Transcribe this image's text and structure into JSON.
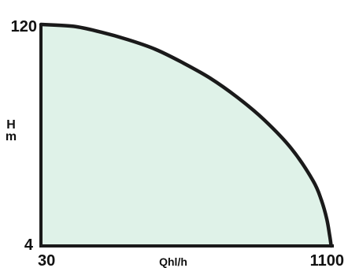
{
  "chart_data": {
    "type": "area",
    "title": "",
    "xlabel": "Qhl/h",
    "ylabel": "H m",
    "ylabel_parts": [
      "H",
      "m"
    ],
    "x_tick_labels": [
      "30",
      "1100"
    ],
    "y_tick_labels": [
      "120",
      "4"
    ],
    "xlim": [
      30,
      1100
    ],
    "ylim": [
      4,
      120
    ],
    "grid": false,
    "legend": "none",
    "colors": {
      "fill": "#dff2e8",
      "curve": "#1a1a1a",
      "frame": "#1a1a1a",
      "text": "#111111"
    },
    "series": [
      {
        "x": [
          30,
          150,
          250,
          350,
          450,
          550,
          650,
          750,
          850,
          950,
          1030,
          1060,
          1080,
          1090,
          1096
        ],
        "y": [
          120,
          119,
          116,
          112,
          107,
          100,
          92,
          82,
          70,
          55,
          38,
          28,
          18,
          10,
          4
        ]
      }
    ]
  }
}
